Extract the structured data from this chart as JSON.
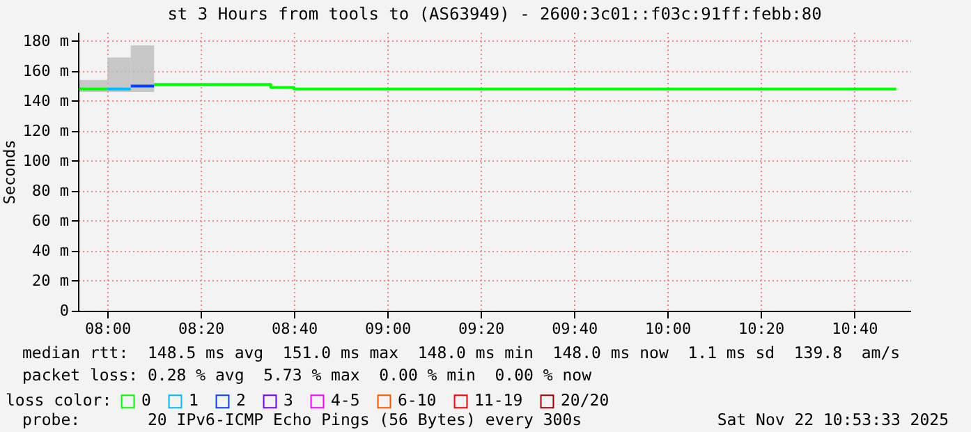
{
  "chart_data": {
    "type": "step",
    "title": "st 3 Hours from tools to (AS63949) - 2600:3c01::f03c:91ff:febb:80",
    "ylabel": "Seconds",
    "legend_title": "loss color:",
    "legend": "bottom",
    "grid": true,
    "xlim": [
      7.895,
      10.87
    ],
    "xticks": [
      {
        "value": 8,
        "label": "08:00"
      },
      {
        "value": 8.3333,
        "label": "08:20"
      },
      {
        "value": 8.6667,
        "label": "08:40"
      },
      {
        "value": 9,
        "label": "09:00"
      },
      {
        "value": 9.3333,
        "label": "09:20"
      },
      {
        "value": 9.6667,
        "label": "09:40"
      },
      {
        "value": 10,
        "label": "10:00"
      },
      {
        "value": 10.3333,
        "label": "10:20"
      },
      {
        "value": 10.6667,
        "label": "10:40"
      }
    ],
    "ylim": [
      0,
      186
    ],
    "yticks": [
      0,
      {
        "value": 20,
        "label": "20 m"
      },
      {
        "value": 40,
        "label": "40 m"
      },
      {
        "value": 60,
        "label": "60 m"
      },
      {
        "value": 80,
        "label": "80 m"
      },
      {
        "value": 100,
        "label": "100 m"
      },
      {
        "value": 120,
        "label": "120 m"
      },
      {
        "value": 140,
        "label": "140 m"
      },
      {
        "value": 160,
        "label": "160 m"
      },
      {
        "value": 180,
        "label": "180 m"
      }
    ],
    "series": [
      {
        "name": "0",
        "color": "#00ff00",
        "x": [
          7.9,
          8.0,
          8.1667,
          8.5833,
          8.6667,
          10.8167
        ],
        "values": [
          148,
          null,
          151,
          149,
          148,
          148
        ],
        "lower": [
          146,
          146,
          null,
          null,
          null,
          null
        ],
        "upper": [
          154,
          154,
          null,
          null,
          null,
          null
        ]
      },
      {
        "name": "1",
        "color": "#00bbff",
        "x": [
          8.0,
          8.0833
        ],
        "values": [
          148,
          148
        ],
        "lower": [
          146,
          146
        ],
        "upper": [
          169,
          169
        ]
      },
      {
        "name": "2",
        "color": "#0044ff",
        "x": [
          8.0833,
          8.1667
        ],
        "values": [
          150,
          150
        ],
        "lower": [
          146,
          146
        ],
        "upper": [
          177,
          177
        ]
      },
      {
        "name": "3",
        "color": "#7700ff"
      },
      {
        "name": "4-5",
        "color": "#ff00ff"
      },
      {
        "name": "6-10",
        "color": "#ff5500"
      },
      {
        "name": "11-19",
        "color": "#ff0000"
      },
      {
        "name": "20/20",
        "color": "#a10000"
      }
    ],
    "annotations": [
      "median rtt:  148.5 ms avg  151.0 ms max  148.0 ms min  148.0 ms now  1.1 ms sd  139.8  am/s",
      "packet loss: 0.28 % avg  5.73 % max  0.00 % min  0.00 % now",
      "probe:       20 IPv6-ICMP Echo Pings (56 Bytes) every 300s",
      "Sat Nov 22 10:53:33 2025"
    ]
  }
}
